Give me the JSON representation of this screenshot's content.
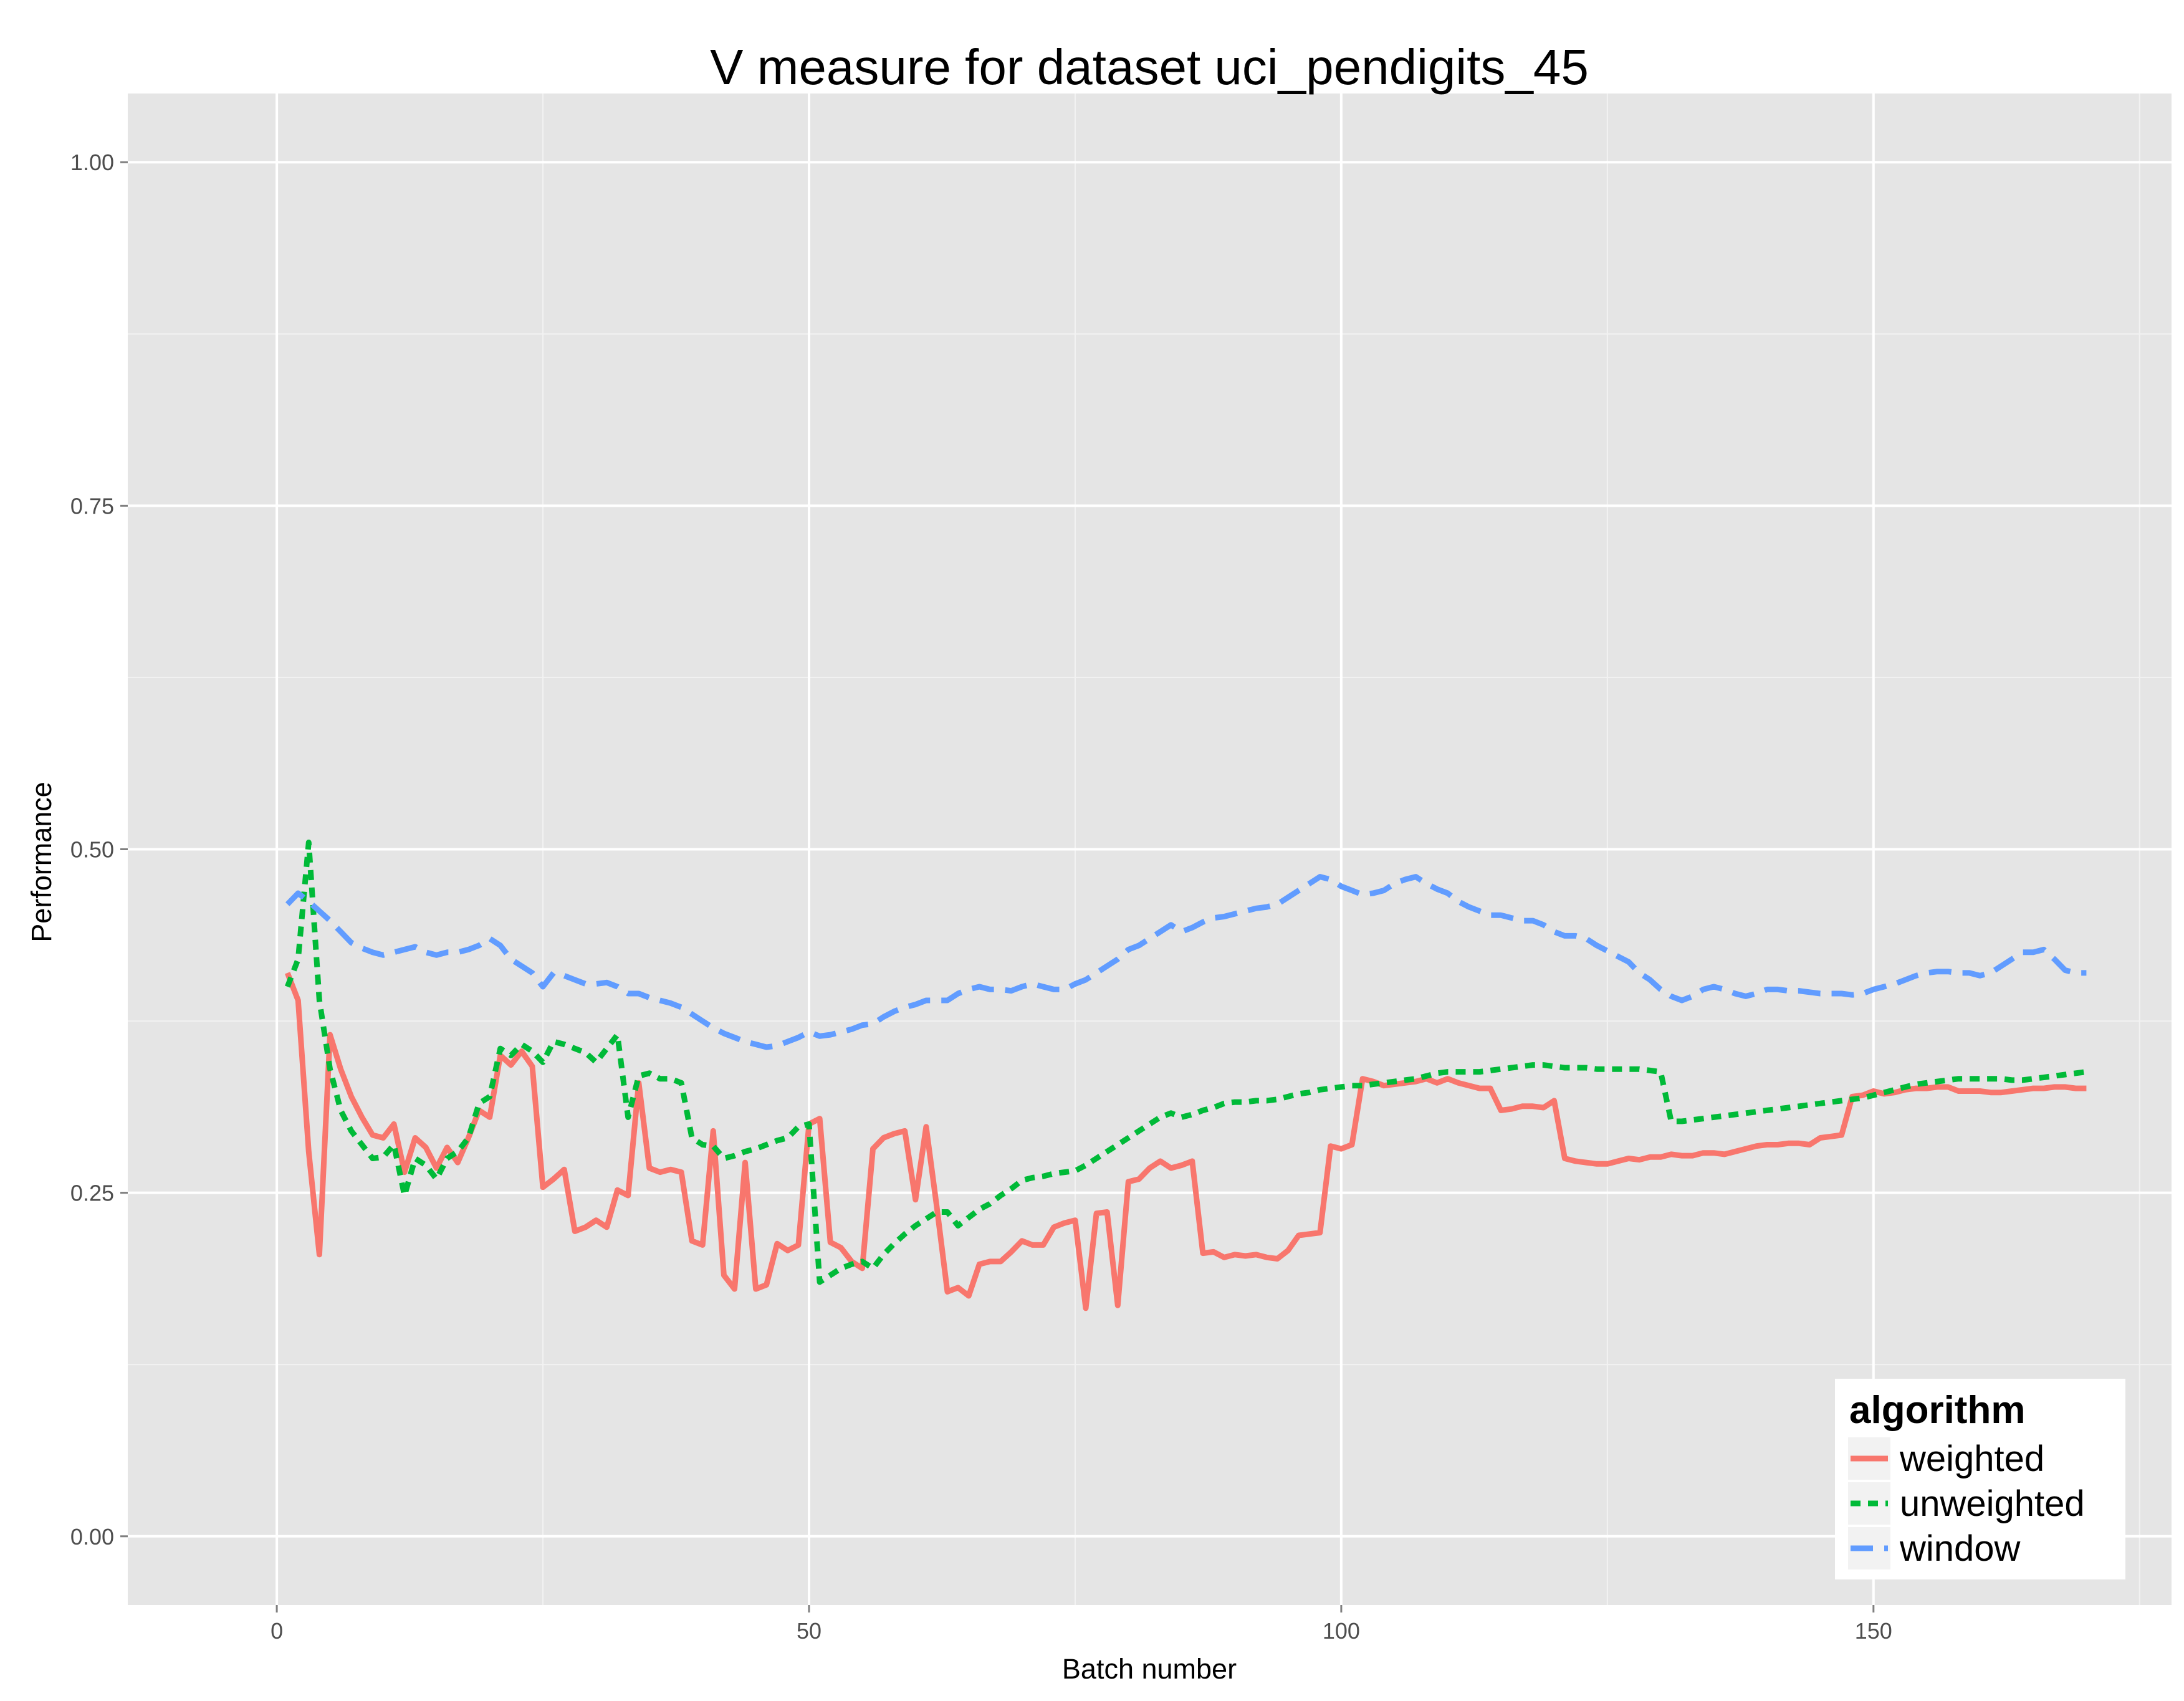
{
  "chart_data": {
    "type": "line",
    "title": "V measure for dataset uci_pendigits_45",
    "xlabel": "Batch number",
    "ylabel": "Performance",
    "xlim": [
      -14,
      178
    ],
    "ylim": [
      -0.05,
      1.05
    ],
    "x_ticks": [
      0,
      50,
      100,
      150
    ],
    "x_tick_labels": [
      "0",
      "50",
      "100",
      "150"
    ],
    "y_ticks": [
      0,
      0.25,
      0.5,
      0.75,
      1
    ],
    "y_tick_labels": [
      "0.00",
      "0.25",
      "0.50",
      "0.75",
      "1.00"
    ],
    "grid": true,
    "legend": {
      "title": "algorithm",
      "position": "bottom-right"
    },
    "series": [
      {
        "name": "weighted",
        "color": "#F8766D",
        "dash": "solid",
        "x": [
          1,
          2,
          3,
          4,
          5,
          6,
          7,
          8,
          9,
          10,
          11,
          12,
          13,
          14,
          15,
          16,
          17,
          18,
          19,
          20,
          21,
          22,
          23,
          24,
          25,
          26,
          27,
          28,
          29,
          30,
          31,
          32,
          33,
          34,
          35,
          36,
          37,
          38,
          39,
          40,
          41,
          42,
          43,
          44,
          45,
          46,
          47,
          48,
          49,
          50,
          51,
          52,
          53,
          54,
          55,
          56,
          57,
          58,
          59,
          60,
          61,
          62,
          63,
          64,
          65,
          66,
          67,
          68,
          69,
          70,
          71,
          72,
          73,
          74,
          75,
          76,
          77,
          78,
          79,
          80,
          81,
          82,
          83,
          84,
          85,
          86,
          87,
          88,
          89,
          90,
          91,
          92,
          93,
          94,
          95,
          96,
          97,
          98,
          99,
          100,
          101,
          102,
          103,
          104,
          105,
          106,
          107,
          108,
          109,
          110,
          111,
          112,
          113,
          114,
          115,
          116,
          117,
          118,
          119,
          120,
          121,
          122,
          123,
          124,
          125,
          126,
          127,
          128,
          129,
          130,
          131,
          132,
          133,
          134,
          135,
          136,
          137,
          138,
          139,
          140,
          141,
          142,
          143,
          144,
          145,
          146,
          147,
          148,
          149,
          150,
          151,
          152,
          153,
          154,
          155,
          156,
          157,
          158,
          159,
          160,
          161,
          162,
          163,
          164,
          165,
          166,
          167,
          168,
          169,
          170
        ],
        "y": [
          0.41,
          0.39,
          0.28,
          0.205,
          0.365,
          0.34,
          0.32,
          0.305,
          0.292,
          0.29,
          0.3,
          0.265,
          0.29,
          0.283,
          0.268,
          0.283,
          0.272,
          0.29,
          0.31,
          0.305,
          0.35,
          0.343,
          0.353,
          0.342,
          0.254,
          0.26,
          0.267,
          0.222,
          0.225,
          0.23,
          0.225,
          0.252,
          0.248,
          0.33,
          0.268,
          0.265,
          0.267,
          0.265,
          0.215,
          0.212,
          0.295,
          0.19,
          0.18,
          0.272,
          0.18,
          0.183,
          0.213,
          0.208,
          0.212,
          0.3,
          0.304,
          0.214,
          0.21,
          0.2,
          0.195,
          0.282,
          0.29,
          0.293,
          0.295,
          0.245,
          0.298,
          0.24,
          0.178,
          0.181,
          0.175,
          0.198,
          0.2,
          0.2,
          0.207,
          0.215,
          0.212,
          0.212,
          0.225,
          0.228,
          0.23,
          0.166,
          0.235,
          0.236,
          0.168,
          0.258,
          0.26,
          0.268,
          0.273,
          0.268,
          0.27,
          0.273,
          0.206,
          0.207,
          0.203,
          0.205,
          0.204,
          0.205,
          0.203,
          0.202,
          0.208,
          0.219,
          0.22,
          0.221,
          0.284,
          0.282,
          0.285,
          0.333,
          0.331,
          0.328,
          0.329,
          0.33,
          0.331,
          0.333,
          0.33,
          0.333,
          0.33,
          0.328,
          0.326,
          0.326,
          0.31,
          0.311,
          0.313,
          0.313,
          0.312,
          0.317,
          0.275,
          0.273,
          0.272,
          0.271,
          0.271,
          0.273,
          0.275,
          0.274,
          0.276,
          0.276,
          0.278,
          0.277,
          0.277,
          0.279,
          0.279,
          0.278,
          0.28,
          0.282,
          0.284,
          0.285,
          0.285,
          0.286,
          0.286,
          0.285,
          0.29,
          0.291,
          0.292,
          0.32,
          0.321,
          0.324,
          0.322,
          0.323,
          0.325,
          0.326,
          0.326,
          0.327,
          0.327,
          0.324,
          0.324,
          0.324,
          0.323,
          0.323,
          0.324,
          0.325,
          0.326,
          0.326,
          0.327,
          0.327,
          0.326,
          0.326
        ]
      },
      {
        "name": "unweighted",
        "color": "#00BA38",
        "dash": "dotted",
        "x": [
          1,
          2,
          3,
          4,
          5,
          6,
          7,
          8,
          9,
          10,
          11,
          12,
          13,
          14,
          15,
          16,
          17,
          18,
          19,
          20,
          21,
          22,
          23,
          24,
          25,
          26,
          27,
          28,
          29,
          30,
          31,
          32,
          33,
          34,
          35,
          36,
          37,
          38,
          39,
          40,
          41,
          42,
          43,
          44,
          45,
          46,
          47,
          48,
          49,
          50,
          51,
          52,
          53,
          54,
          55,
          56,
          57,
          58,
          59,
          60,
          61,
          62,
          63,
          64,
          65,
          66,
          67,
          68,
          69,
          70,
          71,
          72,
          73,
          74,
          75,
          76,
          77,
          78,
          79,
          80,
          81,
          82,
          83,
          84,
          85,
          86,
          87,
          88,
          89,
          90,
          91,
          92,
          93,
          94,
          95,
          96,
          97,
          98,
          99,
          100,
          101,
          102,
          103,
          104,
          105,
          106,
          107,
          108,
          109,
          110,
          111,
          112,
          113,
          114,
          115,
          116,
          117,
          118,
          119,
          120,
          121,
          122,
          123,
          124,
          125,
          126,
          127,
          128,
          129,
          130,
          131,
          132,
          133,
          134,
          135,
          136,
          137,
          138,
          139,
          140,
          141,
          142,
          143,
          144,
          145,
          146,
          147,
          148,
          149,
          150,
          151,
          152,
          153,
          154,
          155,
          156,
          157,
          158,
          159,
          160,
          161,
          162,
          163,
          164,
          165,
          166,
          167,
          168,
          169,
          170
        ],
        "y": [
          0.4,
          0.42,
          0.505,
          0.39,
          0.34,
          0.31,
          0.295,
          0.285,
          0.275,
          0.276,
          0.285,
          0.248,
          0.275,
          0.27,
          0.26,
          0.275,
          0.28,
          0.29,
          0.315,
          0.32,
          0.355,
          0.35,
          0.358,
          0.353,
          0.345,
          0.36,
          0.358,
          0.355,
          0.352,
          0.345,
          0.355,
          0.365,
          0.305,
          0.335,
          0.337,
          0.333,
          0.333,
          0.33,
          0.29,
          0.285,
          0.284,
          0.275,
          0.277,
          0.28,
          0.282,
          0.285,
          0.288,
          0.29,
          0.298,
          0.3,
          0.185,
          0.19,
          0.195,
          0.198,
          0.2,
          0.195,
          0.205,
          0.213,
          0.22,
          0.226,
          0.231,
          0.236,
          0.236,
          0.226,
          0.232,
          0.238,
          0.242,
          0.248,
          0.253,
          0.259,
          0.261,
          0.262,
          0.264,
          0.265,
          0.266,
          0.27,
          0.275,
          0.28,
          0.285,
          0.29,
          0.295,
          0.3,
          0.305,
          0.308,
          0.305,
          0.307,
          0.31,
          0.312,
          0.315,
          0.316,
          0.316,
          0.317,
          0.317,
          0.318,
          0.32,
          0.322,
          0.323,
          0.325,
          0.326,
          0.327,
          0.328,
          0.328,
          0.329,
          0.33,
          0.331,
          0.332,
          0.333,
          0.335,
          0.337,
          0.338,
          0.338,
          0.338,
          0.338,
          0.339,
          0.34,
          0.341,
          0.342,
          0.343,
          0.343,
          0.342,
          0.341,
          0.341,
          0.341,
          0.34,
          0.34,
          0.34,
          0.34,
          0.34,
          0.339,
          0.338,
          0.302,
          0.302,
          0.303,
          0.304,
          0.305,
          0.306,
          0.307,
          0.308,
          0.309,
          0.31,
          0.311,
          0.312,
          0.313,
          0.314,
          0.315,
          0.316,
          0.317,
          0.318,
          0.319,
          0.321,
          0.323,
          0.325,
          0.327,
          0.329,
          0.33,
          0.331,
          0.332,
          0.333,
          0.333,
          0.333,
          0.333,
          0.333,
          0.332,
          0.332,
          0.333,
          0.334,
          0.335,
          0.336,
          0.337,
          0.338
        ]
      },
      {
        "name": "window",
        "color": "#619CFF",
        "dash": "dashed",
        "x": [
          1,
          2,
          3,
          4,
          5,
          6,
          7,
          8,
          9,
          10,
          11,
          12,
          13,
          14,
          15,
          16,
          17,
          18,
          19,
          20,
          21,
          22,
          23,
          24,
          25,
          26,
          27,
          28,
          29,
          30,
          31,
          32,
          33,
          34,
          35,
          36,
          37,
          38,
          39,
          40,
          41,
          42,
          43,
          44,
          45,
          46,
          47,
          48,
          49,
          50,
          51,
          52,
          53,
          54,
          55,
          56,
          57,
          58,
          59,
          60,
          61,
          62,
          63,
          64,
          65,
          66,
          67,
          68,
          69,
          70,
          71,
          72,
          73,
          74,
          75,
          76,
          77,
          78,
          79,
          80,
          81,
          82,
          83,
          84,
          85,
          86,
          87,
          88,
          89,
          90,
          91,
          92,
          93,
          94,
          95,
          96,
          97,
          98,
          99,
          100,
          101,
          102,
          103,
          104,
          105,
          106,
          107,
          108,
          109,
          110,
          111,
          112,
          113,
          114,
          115,
          116,
          117,
          118,
          119,
          120,
          121,
          122,
          123,
          124,
          125,
          126,
          127,
          128,
          129,
          130,
          131,
          132,
          133,
          134,
          135,
          136,
          137,
          138,
          139,
          140,
          141,
          142,
          143,
          144,
          145,
          146,
          147,
          148,
          149,
          150,
          151,
          152,
          153,
          154,
          155,
          156,
          157,
          158,
          159,
          160,
          161,
          162,
          163,
          164,
          165,
          166,
          167,
          168,
          169,
          170
        ],
        "y": [
          0.46,
          0.468,
          0.462,
          0.455,
          0.448,
          0.44,
          0.432,
          0.428,
          0.425,
          0.423,
          0.425,
          0.427,
          0.429,
          0.425,
          0.423,
          0.425,
          0.425,
          0.427,
          0.43,
          0.435,
          0.43,
          0.42,
          0.415,
          0.41,
          0.4,
          0.41,
          0.408,
          0.405,
          0.402,
          0.402,
          0.403,
          0.4,
          0.395,
          0.395,
          0.392,
          0.39,
          0.388,
          0.385,
          0.38,
          0.375,
          0.37,
          0.366,
          0.363,
          0.36,
          0.358,
          0.356,
          0.357,
          0.36,
          0.363,
          0.367,
          0.364,
          0.365,
          0.367,
          0.369,
          0.372,
          0.373,
          0.378,
          0.382,
          0.385,
          0.387,
          0.39,
          0.39,
          0.39,
          0.395,
          0.398,
          0.4,
          0.398,
          0.398,
          0.397,
          0.4,
          0.402,
          0.4,
          0.398,
          0.398,
          0.402,
          0.405,
          0.41,
          0.415,
          0.42,
          0.427,
          0.43,
          0.435,
          0.44,
          0.445,
          0.44,
          0.443,
          0.447,
          0.45,
          0.451,
          0.453,
          0.455,
          0.457,
          0.458,
          0.46,
          0.465,
          0.47,
          0.475,
          0.48,
          0.478,
          0.473,
          0.47,
          0.467,
          0.468,
          0.47,
          0.475,
          0.478,
          0.48,
          0.475,
          0.471,
          0.468,
          0.462,
          0.458,
          0.455,
          0.452,
          0.452,
          0.45,
          0.448,
          0.448,
          0.445,
          0.44,
          0.437,
          0.437,
          0.435,
          0.43,
          0.426,
          0.422,
          0.418,
          0.41,
          0.405,
          0.398,
          0.393,
          0.39,
          0.393,
          0.398,
          0.4,
          0.398,
          0.395,
          0.393,
          0.395,
          0.398,
          0.398,
          0.397,
          0.397,
          0.396,
          0.395,
          0.395,
          0.395,
          0.394,
          0.395,
          0.398,
          0.4,
          0.402,
          0.405,
          0.408,
          0.41,
          0.411,
          0.411,
          0.41,
          0.41,
          0.408,
          0.41,
          0.415,
          0.42,
          0.425,
          0.425,
          0.427,
          0.42,
          0.412,
          0.41,
          0.41
        ]
      }
    ]
  }
}
